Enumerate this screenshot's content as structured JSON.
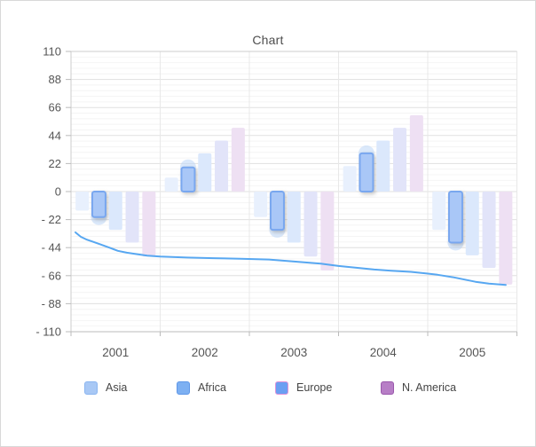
{
  "chart_data": {
    "type": "bar+line",
    "title": "Chart",
    "categories": [
      "2001",
      "2002",
      "2003",
      "2004",
      "2005"
    ],
    "ylim": [
      -110,
      110
    ],
    "y_major_step": 22,
    "y_minor_step": 4.4,
    "y_tick_labels": [
      "110",
      "88",
      "66",
      "44",
      "22",
      "0",
      "- 22",
      "- 44",
      "- 66",
      "- 88",
      "- 110"
    ],
    "grid": true,
    "legend_position": "bottom",
    "series": [
      {
        "name": "Asia",
        "type": "bar",
        "color": "#e8f0fd",
        "values": [
          -15,
          11,
          -20,
          20,
          -30
        ]
      },
      {
        "name": "Africa",
        "type": "bar",
        "color": "#a9c7f7",
        "border_color": "#79a7ef",
        "emphasized": true,
        "halo_color": "rgba(190,215,248,0.55)",
        "values": [
          -20,
          19,
          -30,
          30,
          -40
        ]
      },
      {
        "name": "Europe",
        "type": "bar",
        "color": "#dbe8fc",
        "values": [
          -30,
          30,
          -40,
          40,
          -50
        ]
      },
      {
        "name": "",
        "type": "bar",
        "color": "#e2e4f9",
        "values": [
          -40,
          40,
          -51,
          50,
          -60
        ]
      },
      {
        "name": "N. America",
        "type": "bar",
        "color": "#eee0f3",
        "values": [
          -51,
          50,
          -62,
          60,
          -73
        ]
      },
      {
        "name": "",
        "type": "line",
        "color": "#57a7f1",
        "points": [
          [
            0.01,
            -32
          ],
          [
            0.022,
            -35.5
          ],
          [
            0.034,
            -37.5
          ],
          [
            0.05,
            -39.5
          ],
          [
            0.066,
            -41.5
          ],
          [
            0.086,
            -44
          ],
          [
            0.105,
            -46.5
          ],
          [
            0.125,
            -48
          ],
          [
            0.145,
            -49
          ],
          [
            0.171,
            -50.3
          ],
          [
            0.2,
            -51
          ],
          [
            0.26,
            -51.8
          ],
          [
            0.32,
            -52.3
          ],
          [
            0.38,
            -52.8
          ],
          [
            0.444,
            -53.3
          ],
          [
            0.51,
            -55.2
          ],
          [
            0.56,
            -56.5
          ],
          [
            0.6,
            -58.4
          ],
          [
            0.64,
            -59.8
          ],
          [
            0.68,
            -61.2
          ],
          [
            0.718,
            -62.2
          ],
          [
            0.762,
            -63
          ],
          [
            0.798,
            -64.3
          ],
          [
            0.822,
            -65.3
          ],
          [
            0.858,
            -67.3
          ],
          [
            0.907,
            -70.8
          ],
          [
            0.937,
            -72.3
          ],
          [
            0.975,
            -73.3
          ]
        ]
      }
    ],
    "legend": [
      {
        "label": "Asia",
        "fill": "#a8c8f5",
        "border": "#8ab5f0"
      },
      {
        "label": "Africa",
        "fill": "#7db0f2",
        "border": "#5e97e8"
      },
      {
        "label": "Europe",
        "fill": "#6b9ff2",
        "border": "#df92d8"
      },
      {
        "label": "N. America",
        "fill": "#b77ec6",
        "border": "#9a58ac"
      }
    ],
    "axis_colors": {
      "axis_line": "#cccccc",
      "tick": "#bbbbbb",
      "major_grid": "#e1e1e1",
      "minor_grid": "#f4f4f4",
      "vertical_grid": "#e8e8e8",
      "label_color": "#555555"
    }
  }
}
